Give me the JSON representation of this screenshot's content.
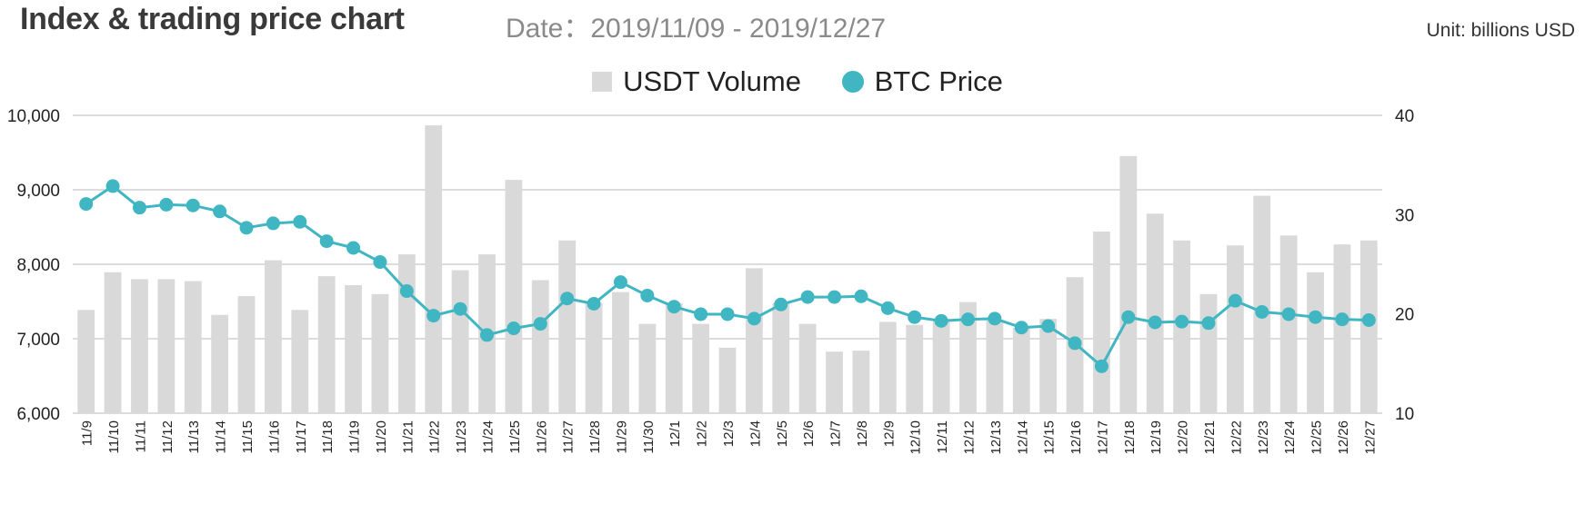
{
  "header": {
    "title": "Index & trading price chart",
    "date_label": "Date：2019/11/09 - 2019/12/27",
    "unit": "Unit: billions USD"
  },
  "legend": {
    "bar_label": "USDT Volume",
    "line_label": "BTC Price"
  },
  "colors": {
    "bar": "#d9d9d9",
    "line": "#3fb6c2",
    "grid": "#c8c8c8",
    "axis_text": "#222222"
  },
  "chart_data": {
    "type": "bar",
    "title": "Index & trading price chart",
    "categories": [
      "11/9",
      "11/10",
      "11/11",
      "11/12",
      "11/13",
      "11/14",
      "11/15",
      "11/16",
      "11/17",
      "11/18",
      "11/19",
      "11/20",
      "11/21",
      "11/22",
      "11/23",
      "11/24",
      "11/25",
      "11/26",
      "11/27",
      "11/28",
      "11/29",
      "11/30",
      "12/1",
      "12/2",
      "12/3",
      "12/4",
      "12/5",
      "12/6",
      "12/7",
      "12/8",
      "12/9",
      "12/10",
      "12/11",
      "12/12",
      "12/13",
      "12/14",
      "12/15",
      "12/16",
      "12/17",
      "12/18",
      "12/19",
      "12/20",
      "12/21",
      "12/22",
      "12/23",
      "12/24",
      "12/25",
      "12/26",
      "12/27"
    ],
    "series": [
      {
        "name": "USDT Volume",
        "type": "bar",
        "axis": "right",
        "values": [
          20.4,
          24.2,
          23.5,
          23.5,
          23.3,
          19.9,
          21.8,
          25.4,
          20.4,
          23.8,
          22.9,
          22.0,
          26.0,
          39.0,
          24.4,
          26.0,
          33.5,
          23.4,
          27.4,
          21.1,
          22.2,
          19.0,
          21.1,
          19.0,
          16.6,
          24.6,
          21.1,
          19.0,
          16.2,
          16.3,
          19.2,
          18.9,
          19.5,
          21.2,
          19.4,
          18.6,
          19.5,
          23.7,
          28.3,
          35.9,
          30.1,
          27.4,
          22.0,
          26.9,
          31.9,
          27.9,
          24.2,
          27.0,
          27.4
        ]
      },
      {
        "name": "BTC Price",
        "type": "line",
        "axis": "left",
        "values": [
          8810,
          9050,
          8760,
          8800,
          8790,
          8710,
          8490,
          8550,
          8570,
          8310,
          8220,
          8030,
          7640,
          7310,
          7400,
          7050,
          7140,
          7200,
          7540,
          7470,
          7760,
          7580,
          7430,
          7330,
          7330,
          7270,
          7460,
          7560,
          7560,
          7570,
          7410,
          7290,
          7240,
          7260,
          7270,
          7150,
          7170,
          6940,
          6630,
          7290,
          7220,
          7230,
          7210,
          7510,
          7360,
          7330,
          7290,
          7260,
          7250
        ]
      }
    ],
    "y_left": {
      "ylim": [
        6000,
        10000
      ],
      "ticks": [
        "6,000",
        "7,000",
        "8,000",
        "9,000",
        "10,000"
      ],
      "tick_values": [
        6000,
        7000,
        8000,
        9000,
        10000
      ]
    },
    "y_right": {
      "ylim": [
        10,
        40
      ],
      "ticks": [
        "10",
        "20",
        "30",
        "40"
      ],
      "tick_values": [
        10,
        20,
        30,
        40
      ]
    },
    "grid": true,
    "legend_position": "top-center"
  }
}
